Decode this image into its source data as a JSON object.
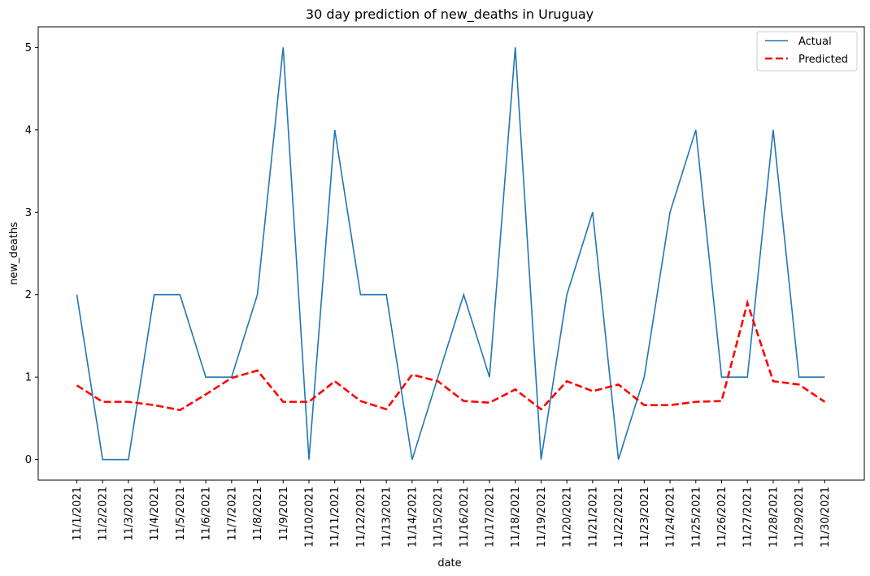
{
  "chart_data": {
    "type": "line",
    "title": "30 day prediction of new_deaths in Uruguay",
    "xlabel": "date",
    "ylabel": "new_deaths",
    "ylim": [
      -0.25,
      5.25
    ],
    "yticks": [
      0,
      1,
      2,
      3,
      4,
      5
    ],
    "grid": false,
    "legend_position": "top-right",
    "categories": [
      "11/1/2021",
      "11/2/2021",
      "11/3/2021",
      "11/4/2021",
      "11/5/2021",
      "11/6/2021",
      "11/7/2021",
      "11/8/2021",
      "11/9/2021",
      "11/10/2021",
      "11/11/2021",
      "11/12/2021",
      "11/13/2021",
      "11/14/2021",
      "11/15/2021",
      "11/16/2021",
      "11/17/2021",
      "11/18/2021",
      "11/19/2021",
      "11/20/2021",
      "11/21/2021",
      "11/22/2021",
      "11/23/2021",
      "11/24/2021",
      "11/25/2021",
      "11/26/2021",
      "11/27/2021",
      "11/28/2021",
      "11/29/2021",
      "11/30/2021"
    ],
    "series": [
      {
        "name": "Actual",
        "color": "#1f77b4",
        "style": "solid",
        "values": [
          2,
          0,
          0,
          2,
          2,
          1,
          1,
          2,
          5,
          0,
          4,
          2,
          2,
          0,
          1,
          2,
          1,
          5,
          0,
          2,
          3,
          0,
          1,
          3,
          4,
          1,
          1,
          4,
          1,
          1
        ]
      },
      {
        "name": "Predicted",
        "color": "#ff0000",
        "style": "dashed",
        "values": [
          0.9,
          0.7,
          0.7,
          0.66,
          0.6,
          0.79,
          0.99,
          1.08,
          0.7,
          0.7,
          0.95,
          0.71,
          0.61,
          1.03,
          0.95,
          0.71,
          0.69,
          0.85,
          0.61,
          0.95,
          0.83,
          0.91,
          0.66,
          0.66,
          0.7,
          0.71,
          1.9,
          0.95,
          0.91,
          0.7
        ]
      }
    ]
  }
}
